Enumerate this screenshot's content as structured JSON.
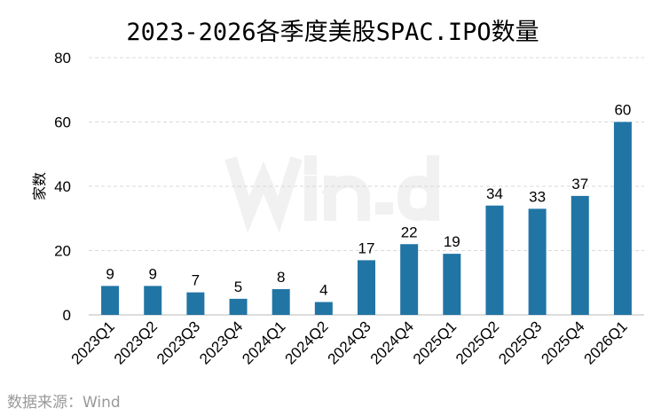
{
  "chart_data": {
    "type": "bar",
    "title": "2023-2026各季度美股SPAC.IPO数量",
    "xlabel": "",
    "ylabel": "家数",
    "ylim": [
      0,
      80
    ],
    "yticks": [
      0,
      20,
      40,
      60,
      80
    ],
    "grid": true,
    "categories": [
      "2023Q1",
      "2023Q2",
      "2023Q3",
      "2023Q4",
      "2024Q1",
      "2024Q2",
      "2024Q3",
      "2024Q4",
      "2025Q1",
      "2025Q2",
      "2025Q3",
      "2025Q4",
      "2026Q1"
    ],
    "values": [
      9,
      9,
      7,
      5,
      8,
      4,
      17,
      22,
      19,
      34,
      33,
      37,
      60
    ],
    "bar_color": "#2175a5",
    "data_labels": true
  },
  "source": "数据来源：Wind",
  "watermark": "Wind"
}
